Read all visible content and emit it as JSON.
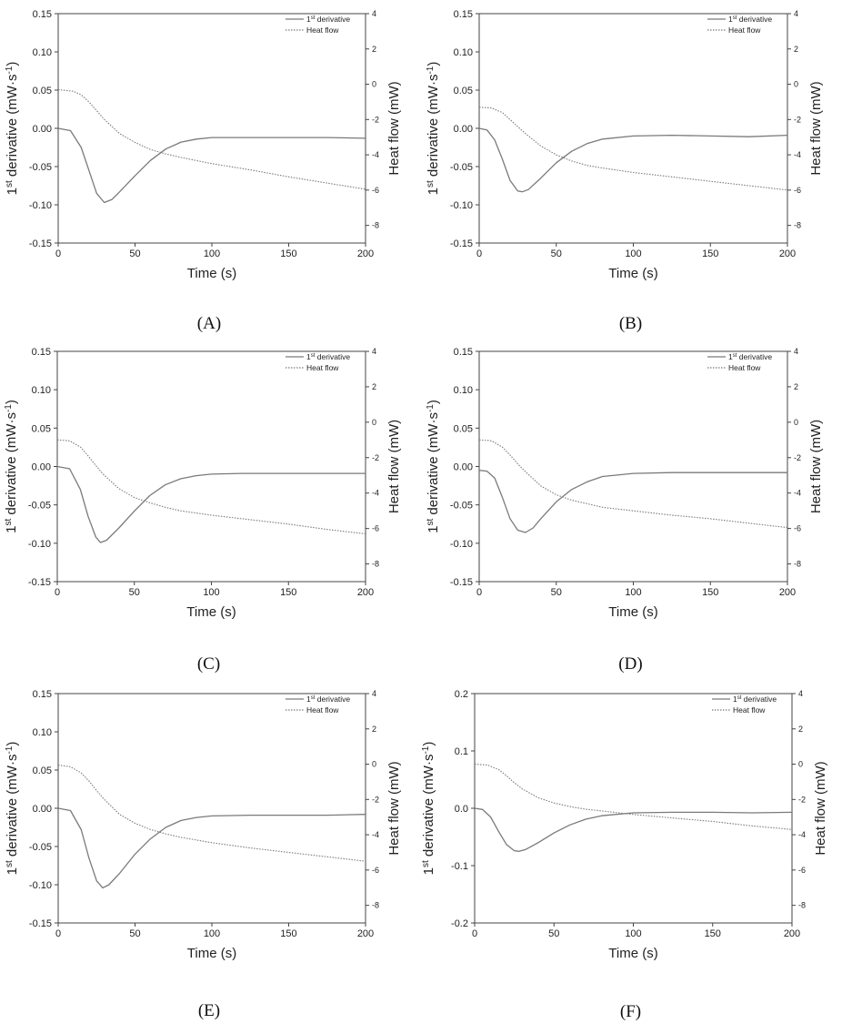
{
  "figure": {
    "axis_labels": {
      "x": "Time (s)",
      "y_left_base": "1",
      "y_left_sup": "st",
      "y_left_rest": " derivative (mW·s",
      "y_left_exp": "-1",
      "y_left_close": ")",
      "y_right": "Heat flow (mW)"
    },
    "legend": {
      "derivative_base": "1",
      "derivative_sup": "st",
      "derivative_rest": " derivative",
      "heat_flow": "Heat flow"
    },
    "colors": {
      "line": "#7a7a7a",
      "axis": "#444444",
      "text": "#222222"
    }
  },
  "chart_data": [
    {
      "label": "(A)",
      "type": "line",
      "xlim": [
        0,
        200
      ],
      "ylim": [
        -0.15,
        0.15
      ],
      "y2lim": [
        -9,
        4
      ],
      "xticks": [
        0,
        50,
        100,
        150,
        200
      ],
      "yticks": [
        -0.15,
        -0.1,
        -0.05,
        0.0,
        0.05,
        0.1,
        0.15
      ],
      "y2ticks": [
        -8,
        -6,
        -4,
        -2,
        0,
        2,
        4
      ],
      "series": [
        {
          "name": "1st derivative",
          "axis": "left",
          "style": "solid",
          "x": [
            0,
            8,
            15,
            20,
            25,
            30,
            35,
            40,
            50,
            60,
            70,
            80,
            90,
            100,
            120,
            150,
            175,
            200
          ],
          "y": [
            0.0,
            -0.003,
            -0.025,
            -0.055,
            -0.085,
            -0.097,
            -0.093,
            -0.083,
            -0.062,
            -0.042,
            -0.027,
            -0.018,
            -0.014,
            -0.012,
            -0.012,
            -0.012,
            -0.012,
            -0.013
          ]
        },
        {
          "name": "Heat flow",
          "axis": "right",
          "style": "dotted",
          "x": [
            0,
            10,
            15,
            20,
            25,
            30,
            40,
            50,
            60,
            70,
            80,
            100,
            125,
            150,
            175,
            200
          ],
          "y": [
            -0.3,
            -0.4,
            -0.6,
            -1.0,
            -1.5,
            -2.0,
            -2.8,
            -3.3,
            -3.7,
            -3.95,
            -4.15,
            -4.5,
            -4.85,
            -5.25,
            -5.6,
            -5.95
          ]
        }
      ]
    },
    {
      "label": "(B)",
      "type": "line",
      "xlim": [
        0,
        200
      ],
      "ylim": [
        -0.15,
        0.15
      ],
      "y2lim": [
        -9,
        4
      ],
      "xticks": [
        0,
        50,
        100,
        150,
        200
      ],
      "yticks": [
        -0.15,
        -0.1,
        -0.05,
        0.0,
        0.05,
        0.1,
        0.15
      ],
      "y2ticks": [
        -8,
        -6,
        -4,
        -2,
        0,
        2,
        4
      ],
      "series": [
        {
          "name": "1st derivative",
          "axis": "left",
          "style": "solid",
          "x": [
            0,
            5,
            10,
            15,
            20,
            25,
            28,
            32,
            40,
            50,
            60,
            70,
            80,
            100,
            125,
            150,
            175,
            200
          ],
          "y": [
            0.0,
            -0.002,
            -0.015,
            -0.04,
            -0.068,
            -0.082,
            -0.083,
            -0.08,
            -0.065,
            -0.045,
            -0.03,
            -0.02,
            -0.014,
            -0.01,
            -0.009,
            -0.01,
            -0.011,
            -0.009
          ]
        },
        {
          "name": "Heat flow",
          "axis": "right",
          "style": "dotted",
          "x": [
            0,
            8,
            15,
            20,
            25,
            30,
            40,
            50,
            60,
            70,
            80,
            100,
            125,
            150,
            175,
            200
          ],
          "y": [
            -1.3,
            -1.35,
            -1.6,
            -2.0,
            -2.4,
            -2.8,
            -3.5,
            -4.0,
            -4.35,
            -4.6,
            -4.75,
            -5.0,
            -5.25,
            -5.5,
            -5.75,
            -6.0
          ]
        }
      ]
    },
    {
      "label": "(C)",
      "type": "line",
      "xlim": [
        0,
        200
      ],
      "ylim": [
        -0.15,
        0.15
      ],
      "y2lim": [
        -9,
        4
      ],
      "xticks": [
        0,
        50,
        100,
        150,
        200
      ],
      "yticks": [
        -0.15,
        -0.1,
        -0.05,
        0.0,
        0.05,
        0.1,
        0.15
      ],
      "y2ticks": [
        -8,
        -6,
        -4,
        -2,
        0,
        2,
        4
      ],
      "series": [
        {
          "name": "1st derivative",
          "axis": "left",
          "style": "solid",
          "x": [
            0,
            8,
            15,
            20,
            25,
            28,
            32,
            40,
            50,
            60,
            70,
            80,
            90,
            100,
            120,
            150,
            175,
            200
          ],
          "y": [
            0.0,
            -0.003,
            -0.03,
            -0.065,
            -0.092,
            -0.099,
            -0.096,
            -0.08,
            -0.058,
            -0.038,
            -0.024,
            -0.016,
            -0.012,
            -0.01,
            -0.009,
            -0.009,
            -0.009,
            -0.009
          ]
        },
        {
          "name": "Heat flow",
          "axis": "right",
          "style": "dotted",
          "x": [
            0,
            8,
            15,
            20,
            25,
            30,
            40,
            50,
            60,
            70,
            80,
            100,
            125,
            150,
            175,
            200
          ],
          "y": [
            -1.0,
            -1.05,
            -1.4,
            -1.9,
            -2.45,
            -2.95,
            -3.75,
            -4.25,
            -4.55,
            -4.8,
            -5.0,
            -5.25,
            -5.5,
            -5.75,
            -6.05,
            -6.3
          ]
        }
      ]
    },
    {
      "label": "(D)",
      "type": "line",
      "xlim": [
        0,
        200
      ],
      "ylim": [
        -0.15,
        0.15
      ],
      "y2lim": [
        -9,
        4
      ],
      "xticks": [
        0,
        50,
        100,
        150,
        200
      ],
      "yticks": [
        -0.15,
        -0.1,
        -0.05,
        0.0,
        0.05,
        0.1,
        0.15
      ],
      "y2ticks": [
        -8,
        -6,
        -4,
        -2,
        0,
        2,
        4
      ],
      "series": [
        {
          "name": "1st derivative",
          "axis": "left",
          "style": "solid",
          "x": [
            0,
            5,
            10,
            15,
            20,
            25,
            30,
            35,
            40,
            50,
            60,
            70,
            80,
            100,
            125,
            150,
            175,
            200
          ],
          "y": [
            -0.005,
            -0.006,
            -0.015,
            -0.04,
            -0.068,
            -0.083,
            -0.086,
            -0.08,
            -0.068,
            -0.046,
            -0.03,
            -0.02,
            -0.013,
            -0.009,
            -0.008,
            -0.008,
            -0.008,
            -0.008
          ]
        },
        {
          "name": "Heat flow",
          "axis": "right",
          "style": "dotted",
          "x": [
            0,
            8,
            15,
            20,
            25,
            30,
            40,
            50,
            60,
            70,
            80,
            100,
            125,
            150,
            175,
            200
          ],
          "y": [
            -1.0,
            -1.05,
            -1.4,
            -1.85,
            -2.35,
            -2.8,
            -3.6,
            -4.1,
            -4.4,
            -4.6,
            -4.8,
            -5.0,
            -5.25,
            -5.45,
            -5.7,
            -5.95
          ]
        }
      ]
    },
    {
      "label": "(E)",
      "type": "line",
      "xlim": [
        0,
        200
      ],
      "ylim": [
        -0.15,
        0.15
      ],
      "y2lim": [
        -9,
        4
      ],
      "xticks": [
        0,
        50,
        100,
        150,
        200
      ],
      "yticks": [
        -0.15,
        -0.1,
        -0.05,
        0.0,
        0.05,
        0.1,
        0.15
      ],
      "y2ticks": [
        -8,
        -6,
        -4,
        -2,
        0,
        2,
        4
      ],
      "series": [
        {
          "name": "1st derivative",
          "axis": "left",
          "style": "solid",
          "x": [
            0,
            8,
            15,
            20,
            25,
            29,
            33,
            40,
            50,
            60,
            70,
            80,
            90,
            100,
            125,
            150,
            175,
            200
          ],
          "y": [
            0.0,
            -0.003,
            -0.028,
            -0.065,
            -0.095,
            -0.104,
            -0.1,
            -0.085,
            -0.06,
            -0.04,
            -0.025,
            -0.016,
            -0.012,
            -0.01,
            -0.009,
            -0.009,
            -0.009,
            -0.008
          ]
        },
        {
          "name": "Heat flow",
          "axis": "right",
          "style": "dotted",
          "x": [
            0,
            8,
            15,
            20,
            25,
            30,
            40,
            50,
            60,
            70,
            80,
            100,
            125,
            150,
            175,
            200
          ],
          "y": [
            -0.05,
            -0.15,
            -0.5,
            -0.95,
            -1.5,
            -2.0,
            -2.85,
            -3.35,
            -3.7,
            -3.95,
            -4.15,
            -4.45,
            -4.75,
            -5.0,
            -5.25,
            -5.5
          ]
        }
      ]
    },
    {
      "label": "(F)",
      "type": "line",
      "xlim": [
        0,
        200
      ],
      "ylim": [
        -0.2,
        0.2
      ],
      "y2lim": [
        -9,
        4
      ],
      "xticks": [
        0,
        50,
        100,
        150,
        200
      ],
      "yticks": [
        -0.2,
        -0.1,
        0.0,
        0.1,
        0.2
      ],
      "y2ticks": [
        -8,
        -6,
        -4,
        -2,
        0,
        2,
        4
      ],
      "series": [
        {
          "name": "1st derivative",
          "axis": "left",
          "style": "solid",
          "x": [
            0,
            5,
            10,
            15,
            20,
            25,
            28,
            32,
            40,
            50,
            60,
            70,
            80,
            100,
            125,
            150,
            175,
            200
          ],
          "y": [
            0.0,
            -0.002,
            -0.015,
            -0.04,
            -0.063,
            -0.074,
            -0.075,
            -0.072,
            -0.06,
            -0.043,
            -0.029,
            -0.019,
            -0.013,
            -0.008,
            -0.007,
            -0.007,
            -0.008,
            -0.007
          ]
        },
        {
          "name": "Heat flow",
          "axis": "right",
          "style": "dotted",
          "x": [
            0,
            8,
            15,
            20,
            25,
            30,
            40,
            50,
            60,
            70,
            80,
            100,
            125,
            150,
            175,
            200
          ],
          "y": [
            0.0,
            -0.05,
            -0.3,
            -0.65,
            -1.05,
            -1.4,
            -1.9,
            -2.2,
            -2.4,
            -2.55,
            -2.65,
            -2.85,
            -3.05,
            -3.25,
            -3.5,
            -3.7
          ]
        }
      ]
    }
  ]
}
